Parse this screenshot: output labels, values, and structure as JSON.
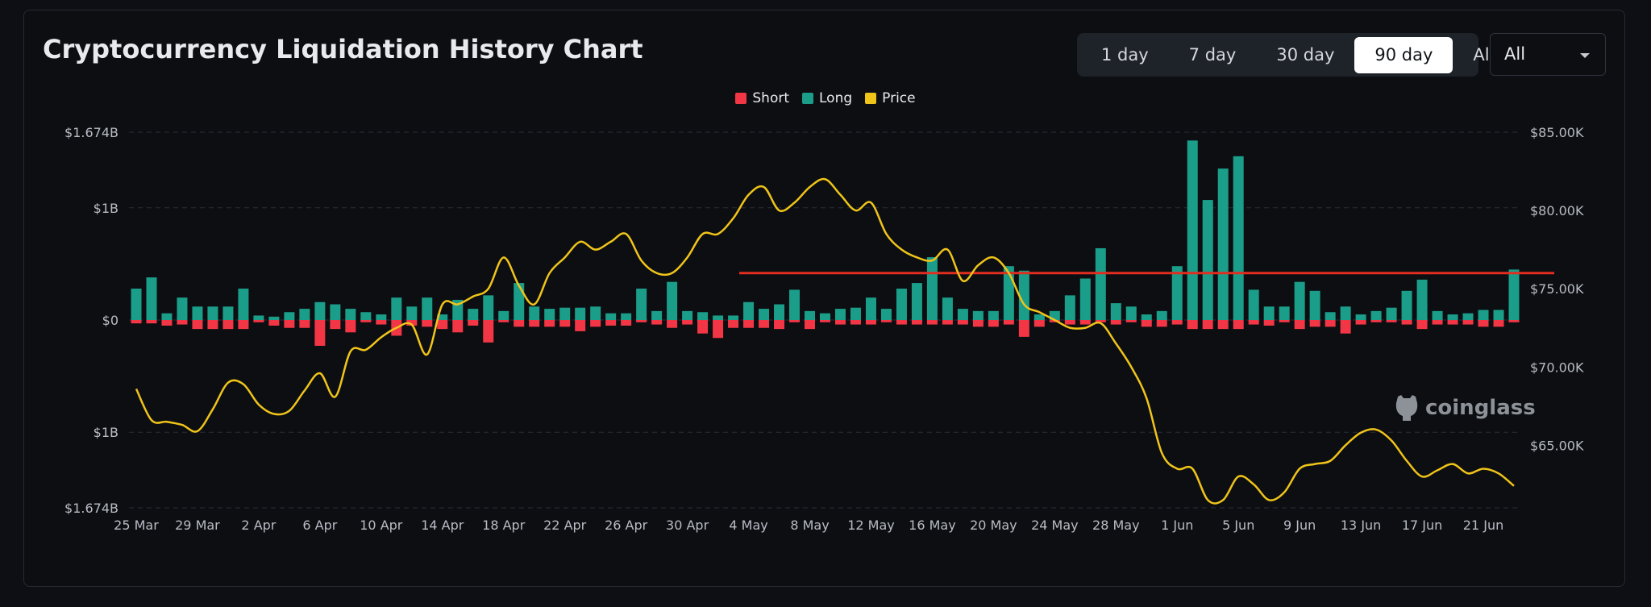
{
  "title": "Cryptocurrency Liquidation History Chart",
  "range_buttons": [
    "1 day",
    "7 day",
    "30 day",
    "90 day",
    "All"
  ],
  "active_range": "90 day",
  "coin_select": {
    "value": "All"
  },
  "watermark": {
    "text": "coinglass",
    "icon": "coinglass-logo-icon"
  },
  "colors": {
    "short": "#f23645",
    "long": "#1a9e89",
    "price": "#f0c419",
    "reference_line": "#e22d21"
  },
  "chart_data": {
    "type": "bar",
    "legend": [
      {
        "name": "Short",
        "color": "#f23645"
      },
      {
        "name": "Long",
        "color": "#1a9e89"
      },
      {
        "name": "Price",
        "color": "#f0c419"
      }
    ],
    "legend_position": "top-center",
    "grid": true,
    "y_left": {
      "ticks": [
        "$1.674B",
        "$1B",
        "$0",
        "$1B",
        "$1.674B"
      ],
      "range_usd": [
        -1674000000,
        1674000000
      ]
    },
    "y_right": {
      "ticks": [
        "$85.00K",
        "$80.00K",
        "$75.00K",
        "$70.00K",
        "$65.00K"
      ],
      "range_usd": [
        61000,
        85000
      ]
    },
    "x_tick_labels": [
      "25 Mar",
      "29 Mar",
      "2 Apr",
      "6 Apr",
      "10 Apr",
      "14 Apr",
      "18 Apr",
      "22 Apr",
      "26 Apr",
      "30 Apr",
      "4 May",
      "8 May",
      "12 May",
      "16 May",
      "20 May",
      "24 May",
      "28 May",
      "1 Jun",
      "5 Jun",
      "9 Jun",
      "13 Jun",
      "17 Jun",
      "21 Jun"
    ],
    "x_start_date": "25 Mar",
    "x_day_count": 91,
    "series": [
      {
        "name": "Long",
        "values_usd_b": [
          0.28,
          0.38,
          0.06,
          0.2,
          0.12,
          0.12,
          0.12,
          0.28,
          0.04,
          0.03,
          0.07,
          0.1,
          0.16,
          0.14,
          0.1,
          0.07,
          0.05,
          0.2,
          0.12,
          0.2,
          0.05,
          0.18,
          0.1,
          0.22,
          0.08,
          0.33,
          0.12,
          0.1,
          0.11,
          0.11,
          0.12,
          0.06,
          0.06,
          0.28,
          0.08,
          0.34,
          0.08,
          0.07,
          0.04,
          0.04,
          0.16,
          0.1,
          0.14,
          0.27,
          0.08,
          0.06,
          0.1,
          0.11,
          0.2,
          0.1,
          0.28,
          0.33,
          0.56,
          0.2,
          0.1,
          0.08,
          0.08,
          0.48,
          0.44,
          0.05,
          0.08,
          0.22,
          0.37,
          0.64,
          0.15,
          0.12,
          0.05,
          0.08,
          0.48,
          1.6,
          1.07,
          1.35,
          1.46,
          0.27,
          0.12,
          0.12,
          0.34,
          0.26,
          0.07,
          0.12,
          0.05,
          0.08,
          0.11,
          0.26,
          0.36,
          0.08,
          0.05,
          0.06,
          0.09,
          0.09,
          0.45
        ]
      },
      {
        "name": "Short",
        "values_usd_b": [
          0.03,
          0.03,
          0.05,
          0.04,
          0.08,
          0.08,
          0.08,
          0.08,
          0.02,
          0.05,
          0.07,
          0.07,
          0.23,
          0.08,
          0.11,
          0.02,
          0.04,
          0.14,
          0.05,
          0.06,
          0.08,
          0.11,
          0.05,
          0.2,
          0.02,
          0.06,
          0.06,
          0.06,
          0.06,
          0.1,
          0.06,
          0.05,
          0.05,
          0.02,
          0.04,
          0.07,
          0.04,
          0.12,
          0.16,
          0.07,
          0.07,
          0.07,
          0.08,
          0.02,
          0.08,
          0.02,
          0.04,
          0.04,
          0.04,
          0.02,
          0.04,
          0.04,
          0.04,
          0.04,
          0.04,
          0.06,
          0.06,
          0.04,
          0.15,
          0.06,
          0.02,
          0.04,
          0.04,
          0.02,
          0.04,
          0.02,
          0.06,
          0.06,
          0.04,
          0.08,
          0.08,
          0.08,
          0.08,
          0.04,
          0.05,
          0.02,
          0.08,
          0.06,
          0.06,
          0.12,
          0.04,
          0.02,
          0.02,
          0.04,
          0.08,
          0.04,
          0.04,
          0.04,
          0.06,
          0.06,
          0.02
        ]
      },
      {
        "name": "Price",
        "values_usd_k": [
          68.6,
          66.6,
          66.5,
          66.3,
          65.9,
          67.3,
          69.0,
          68.9,
          67.6,
          67.0,
          67.2,
          68.5,
          69.6,
          68.1,
          71.0,
          71.1,
          71.9,
          72.5,
          72.7,
          70.8,
          74.0,
          74.0,
          74.5,
          75.0,
          77.0,
          75.2,
          74.0,
          76.0,
          77.0,
          78.0,
          77.5,
          78.0,
          78.5,
          76.8,
          76.0,
          76.0,
          77.0,
          78.5,
          78.5,
          79.5,
          81.0,
          81.5,
          80.0,
          80.5,
          81.5,
          82.0,
          81.0,
          80.0,
          80.5,
          78.5,
          77.5,
          77.0,
          76.8,
          77.5,
          75.5,
          76.5,
          77.0,
          76.0,
          74.0,
          73.5,
          73.0,
          72.5,
          72.5,
          72.8,
          71.5,
          70.0,
          68.0,
          64.5,
          63.5,
          63.5,
          61.5,
          61.5,
          63.0,
          62.5,
          61.5,
          62.0,
          63.5,
          63.8,
          64.0,
          65.0,
          65.8,
          66.0,
          65.3,
          64.0,
          63.0,
          63.4,
          63.8,
          63.2,
          63.5,
          63.2,
          62.4
        ]
      },
      {
        "name": "",
        "level_usd_k": 76.0
      }
    ]
  }
}
